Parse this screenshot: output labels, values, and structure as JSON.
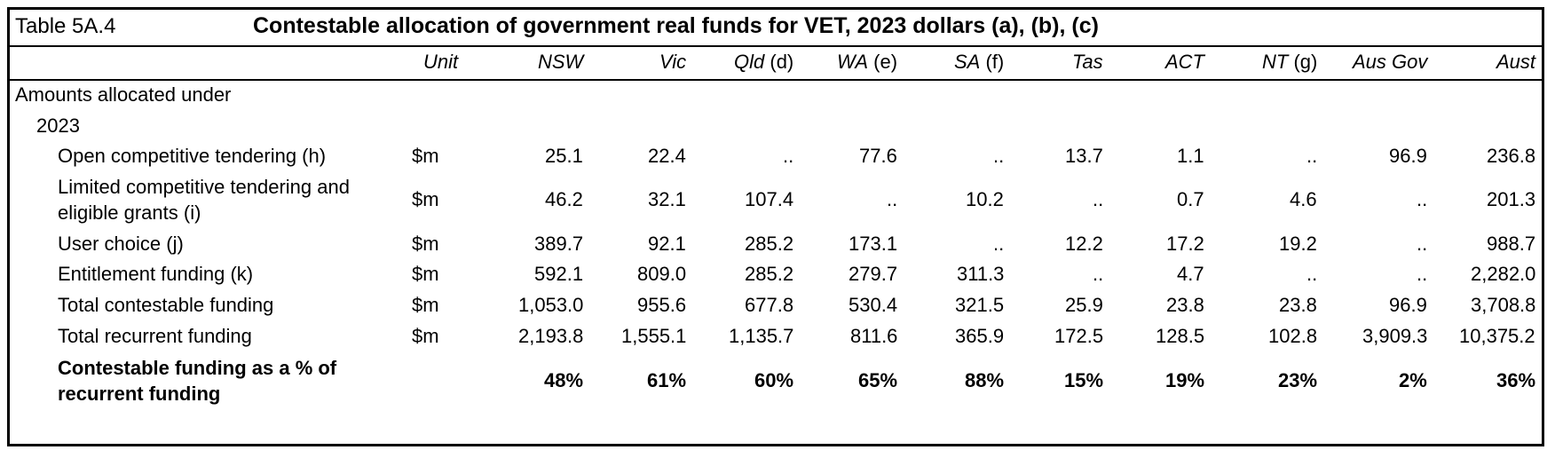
{
  "table": {
    "id": "Table 5A.4",
    "title": "Contestable allocation of government real funds for VET, 2023 dollars (a), (b), (c)",
    "columns": [
      {
        "name": "Unit",
        "note": ""
      },
      {
        "name": "NSW",
        "note": ""
      },
      {
        "name": "Vic",
        "note": ""
      },
      {
        "name": "Qld",
        "note": "(d)"
      },
      {
        "name": "WA",
        "note": "(e)"
      },
      {
        "name": "SA",
        "note": "(f)"
      },
      {
        "name": "Tas",
        "note": ""
      },
      {
        "name": "ACT",
        "note": ""
      },
      {
        "name": "NT",
        "note": "(g)"
      },
      {
        "name": "Aus Gov",
        "note": ""
      },
      {
        "name": "Aust",
        "note": ""
      }
    ],
    "section": "Amounts allocated under",
    "year": "2023",
    "rows": [
      {
        "label": "Open competitive tendering (h)",
        "values": [
          "$m",
          "25.1",
          "22.4",
          "..",
          "77.6",
          "..",
          "13.7",
          "1.1",
          "..",
          "96.9",
          "236.8"
        ]
      },
      {
        "label": "Limited competitive tendering and eligible grants (i)",
        "values": [
          "$m",
          "46.2",
          "32.1",
          "107.4",
          "..",
          "10.2",
          "..",
          "0.7",
          "4.6",
          "..",
          "201.3"
        ]
      },
      {
        "label": "User choice (j)",
        "values": [
          "$m",
          "389.7",
          "92.1",
          "285.2",
          "173.1",
          "..",
          "12.2",
          "17.2",
          "19.2",
          "..",
          "988.7"
        ]
      },
      {
        "label": "Entitlement funding (k)",
        "values": [
          "$m",
          "592.1",
          "809.0",
          "285.2",
          "279.7",
          "311.3",
          "..",
          "4.7",
          "..",
          "..",
          "2,282.0"
        ]
      },
      {
        "label": "Total contestable funding",
        "values": [
          "$m",
          "1,053.0",
          "955.6",
          "677.8",
          "530.4",
          "321.5",
          "25.9",
          "23.8",
          "23.8",
          "96.9",
          "3,708.8"
        ]
      },
      {
        "label": "Total recurrent funding",
        "values": [
          "$m",
          "2,193.8",
          "1,555.1",
          "1,135.7",
          "811.6",
          "365.9",
          "172.5",
          "128.5",
          "102.8",
          "3,909.3",
          "10,375.2"
        ]
      },
      {
        "label": "Contestable funding as a % of recurrent funding",
        "values": [
          "",
          "48%",
          "61%",
          "60%",
          "65%",
          "88%",
          "15%",
          "19%",
          "23%",
          "2%",
          "36%"
        ],
        "bold": true
      }
    ]
  }
}
